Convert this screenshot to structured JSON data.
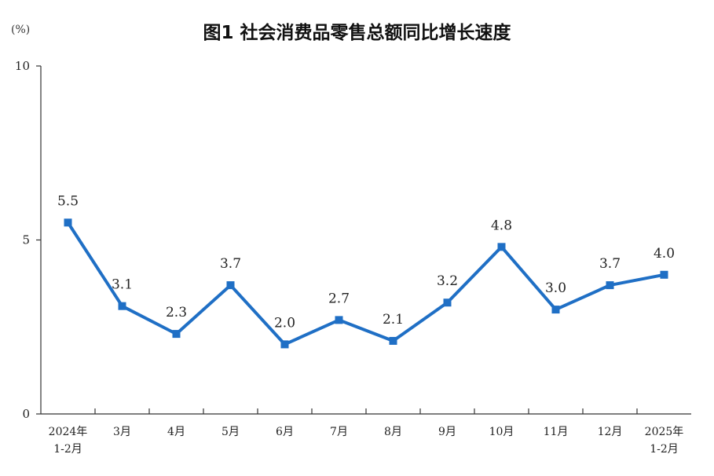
{
  "chart_data": {
    "type": "line",
    "title": "图1  社会消费品零售总额同比增长速度",
    "unit": "(%)",
    "ylim": [
      0,
      10
    ],
    "yticks": [
      "0",
      "5",
      "10"
    ],
    "categories": [
      [
        "2024年",
        "1-2月"
      ],
      [
        "3月"
      ],
      [
        "4月"
      ],
      [
        "5月"
      ],
      [
        "6月"
      ],
      [
        "7月"
      ],
      [
        "8月"
      ],
      [
        "9月"
      ],
      [
        "10月"
      ],
      [
        "11月"
      ],
      [
        "12月"
      ],
      [
        "2025年",
        "1-2月"
      ]
    ],
    "values": [
      5.5,
      3.1,
      2.3,
      3.7,
      2.0,
      2.7,
      2.1,
      3.2,
      4.8,
      3.0,
      3.7,
      4.0
    ],
    "data_labels": [
      "5.5",
      "3.1",
      "2.3",
      "3.7",
      "2.0",
      "2.7",
      "2.1",
      "3.2",
      "4.8",
      "3.0",
      "3.7",
      "4.0"
    ],
    "line_color": "#1f6fc5",
    "grid": false
  }
}
